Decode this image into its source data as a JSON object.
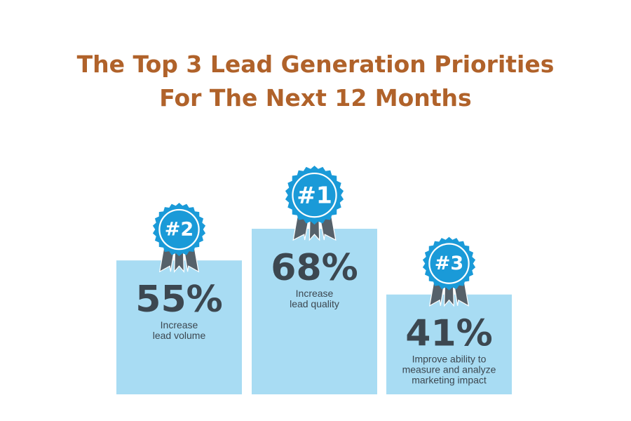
{
  "title": {
    "line1": "The Top 3 Lead Generation Priorities",
    "line2": "For The Next 12 Months"
  },
  "colors": {
    "title": "#b0622a",
    "block": "#a8dcf3",
    "badge": "#1a9ad8",
    "ribbon": "#56616a",
    "text": "#3c4750"
  },
  "chart_data": {
    "type": "bar",
    "unit": "%",
    "categories": [
      "Increase lead volume",
      "Increase lead quality",
      "Improve ability to measure and analyze marketing impact"
    ],
    "values": [
      55,
      68,
      41
    ],
    "bars": [
      {
        "rank": "#2",
        "value": 55,
        "value_label": "55%",
        "desc_lines": [
          "Increase",
          "lead volume"
        ]
      },
      {
        "rank": "#1",
        "value": 68,
        "value_label": "68%",
        "desc_lines": [
          "Increase",
          "lead quality"
        ]
      },
      {
        "rank": "#3",
        "value": 41,
        "value_label": "41%",
        "desc_lines": [
          "Improve ability to",
          "measure and analyze",
          "marketing impact"
        ]
      }
    ]
  }
}
